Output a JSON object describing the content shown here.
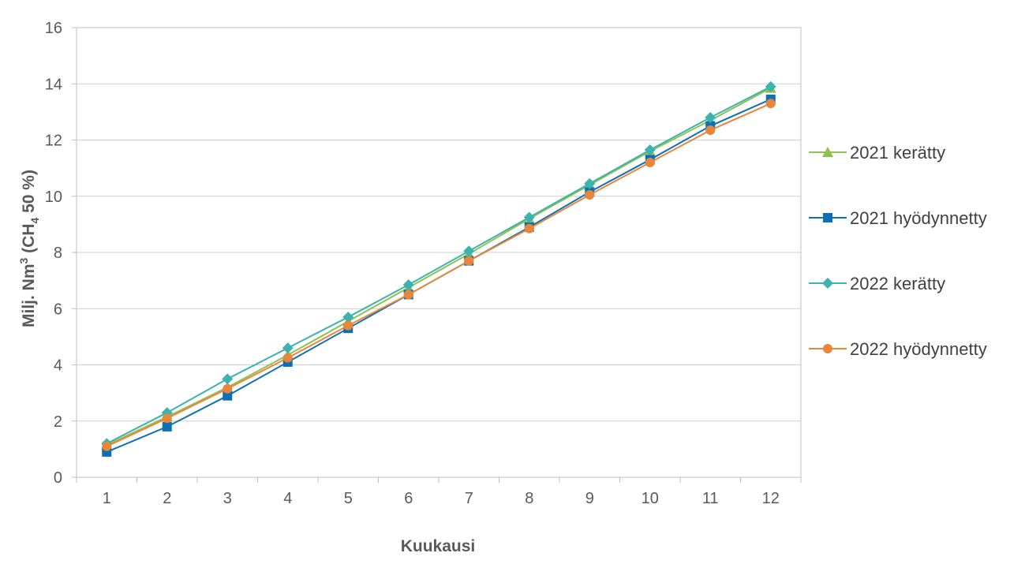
{
  "chart_data": {
    "type": "line",
    "title": "",
    "xlabel": "Kuukausi",
    "ylabel": {
      "main": "Milj. Nm",
      "sup": "3",
      "paren_open": " (CH",
      "sub": "4",
      "paren_close": " 50 %)"
    },
    "x": [
      1,
      2,
      3,
      4,
      5,
      6,
      7,
      8,
      9,
      10,
      11,
      12
    ],
    "xlim": [
      0.5,
      12.5
    ],
    "ylim": [
      0,
      16
    ],
    "yticks": [
      0,
      2,
      4,
      6,
      8,
      10,
      12,
      14,
      16
    ],
    "grid": "horizontal",
    "legend_position": "right",
    "series": [
      {
        "name": "2021 kerätty",
        "color": "#92C050",
        "marker": "triangle",
        "values": [
          1.15,
          2.15,
          3.2,
          4.35,
          5.55,
          6.75,
          7.95,
          9.2,
          10.4,
          11.6,
          12.7,
          13.85
        ]
      },
      {
        "name": "2021 hyödynnetty",
        "color": "#0F6FB5",
        "marker": "square",
        "values": [
          0.9,
          1.8,
          2.9,
          4.1,
          5.3,
          6.5,
          7.7,
          8.9,
          10.15,
          11.3,
          12.5,
          13.45
        ]
      },
      {
        "name": "2022 kerätty",
        "color": "#3DB3B0",
        "marker": "diamond",
        "values": [
          1.2,
          2.3,
          3.5,
          4.6,
          5.7,
          6.85,
          8.05,
          9.25,
          10.45,
          11.65,
          12.8,
          13.9
        ]
      },
      {
        "name": "2022 hyödynnetty",
        "color": "#E8873A",
        "marker": "circle",
        "values": [
          1.1,
          2.1,
          3.15,
          4.25,
          5.4,
          6.5,
          7.7,
          8.85,
          10.05,
          11.2,
          12.35,
          13.3
        ]
      }
    ]
  }
}
